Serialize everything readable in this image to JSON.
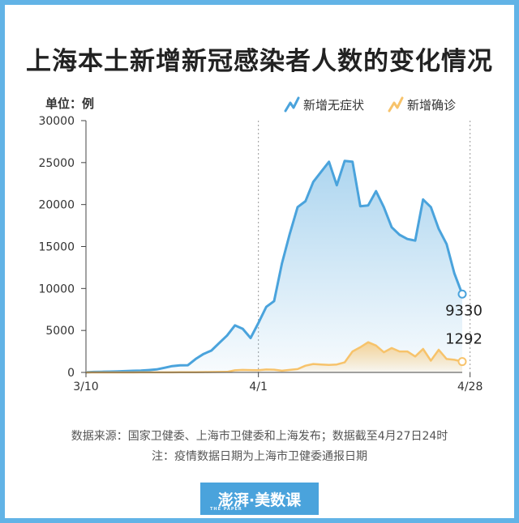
{
  "page_title": "上海本土新增新冠感染者人数的变化情况",
  "footer": {
    "source": "数据来源：国家卫健委、上海市卫健委和上海发布；数据截至4月27日24时",
    "note": "注：疫情数据日期为上海市卫健委通报日期",
    "logo_text": "澎湃·美数课",
    "logo_sub": "THE PAPER"
  },
  "colors": {
    "background": "#62b3e6",
    "asymptomatic": "#4aa3dc",
    "confirmed": "#f7c36b"
  },
  "chart_data": {
    "type": "area",
    "title": "上海本土新增新冠感染者人数的变化情况",
    "ylabel": "单位：例",
    "ylim": [
      0,
      30000
    ],
    "yticks": [
      0,
      5000,
      10000,
      15000,
      20000,
      25000,
      30000
    ],
    "xticks": [
      "3/10",
      "4/1",
      "4/28"
    ],
    "x_range": [
      "3/10",
      "4/28"
    ],
    "grid": "vertical",
    "legend": "top-right",
    "series": [
      {
        "name": "新增无症状",
        "color": "#4aa3dc",
        "end_label": "9330",
        "values": [
          5,
          60,
          80,
          100,
          120,
          150,
          190,
          210,
          280,
          360,
          550,
          750,
          850,
          860,
          1600,
          2200,
          2600,
          3500,
          4400,
          5600,
          5200,
          4100,
          5900,
          7800,
          8500,
          13000,
          16500,
          19700,
          20400,
          22700,
          23900,
          25100,
          22300,
          25200,
          25100,
          19800,
          19900,
          21600,
          19700,
          17300,
          16400,
          15900,
          15700,
          20600,
          19700,
          17100,
          15300,
          11800,
          9330
        ]
      },
      {
        "name": "新增确诊",
        "color": "#f7c36b",
        "end_label": "1292",
        "values": [
          0,
          1,
          1,
          2,
          2,
          3,
          4,
          5,
          5,
          5,
          7,
          10,
          15,
          20,
          30,
          40,
          50,
          60,
          70,
          250,
          300,
          280,
          260,
          350,
          330,
          200,
          300,
          400,
          800,
          1000,
          950,
          900,
          950,
          1200,
          2500,
          3000,
          3600,
          3200,
          2400,
          2900,
          2500,
          2500,
          1900,
          2800,
          1400,
          2700,
          1600,
          1500,
          1292
        ]
      }
    ]
  }
}
